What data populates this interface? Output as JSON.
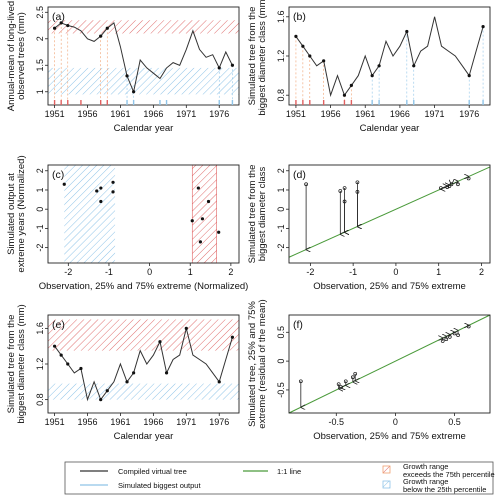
{
  "chart_data": [
    {
      "panel": "(a)",
      "type": "line",
      "xlabel": "Calendar year",
      "ylabel": "Annual-mean of long-lived observed trees (mm)",
      "xlim": [
        1950,
        1979
      ],
      "ylim": [
        0.75,
        2.6
      ],
      "xticks": [
        1951,
        1956,
        1961,
        1966,
        1971,
        1976
      ],
      "yticks": [
        1.0,
        1.5,
        2.0,
        2.5
      ],
      "band_upper": [
        2.1,
        2.35
      ],
      "band_lower": [
        0.95,
        1.45
      ],
      "series": [
        {
          "x": [
            1951,
            1952,
            1953,
            1954,
            1955,
            1956,
            1957,
            1958,
            1959,
            1960,
            1961,
            1962,
            1963,
            1964,
            1965,
            1966,
            1967,
            1968,
            1969,
            1970,
            1971,
            1972,
            1973,
            1974,
            1975,
            1976,
            1977,
            1978
          ],
          "values": [
            2.2,
            2.3,
            2.25,
            2.22,
            2.15,
            2.0,
            1.95,
            2.05,
            2.2,
            2.3,
            1.85,
            1.3,
            1.0,
            1.6,
            1.45,
            1.35,
            1.25,
            1.45,
            1.55,
            1.5,
            1.8,
            2.15,
            1.8,
            1.65,
            1.7,
            1.45,
            1.75,
            1.5
          ]
        }
      ],
      "markers_x": [
        1951,
        1952,
        1953,
        1958,
        1959,
        1962,
        1963,
        1976,
        1978
      ],
      "rug_red": [
        1951,
        1952,
        1953,
        1955,
        1958,
        1959
      ],
      "rug_blue": [
        1962,
        1963,
        1967,
        1968,
        1976,
        1978
      ]
    },
    {
      "panel": "(b)",
      "type": "line",
      "xlabel": "Calendar year",
      "ylabel": "Simulated tree from the biggest diameter class (mm)",
      "xlim": [
        1950,
        1979
      ],
      "ylim": [
        0.7,
        1.7
      ],
      "xticks": [
        1951,
        1956,
        1961,
        1966,
        1971,
        1976
      ],
      "yticks": [
        0.8,
        1.2,
        1.6
      ],
      "series": [
        {
          "x": [
            1951,
            1952,
            1953,
            1954,
            1955,
            1956,
            1957,
            1958,
            1959,
            1960,
            1961,
            1962,
            1963,
            1964,
            1965,
            1966,
            1967,
            1968,
            1969,
            1970,
            1971,
            1972,
            1973,
            1974,
            1975,
            1976,
            1977,
            1978
          ],
          "values": [
            1.4,
            1.3,
            1.2,
            1.1,
            1.15,
            0.8,
            1.0,
            0.8,
            0.9,
            1.0,
            1.2,
            1.0,
            1.1,
            1.35,
            1.2,
            1.3,
            1.45,
            1.1,
            1.25,
            1.3,
            1.6,
            1.3,
            1.25,
            1.2,
            1.1,
            1.0,
            1.25,
            1.5
          ]
        }
      ],
      "markers_x": [
        1951,
        1952,
        1953,
        1955,
        1958,
        1959,
        1962,
        1963,
        1967,
        1968,
        1976,
        1978
      ],
      "rug_red": [
        1951,
        1952,
        1953,
        1955,
        1958,
        1959
      ],
      "rug_blue": [
        1962,
        1963,
        1967,
        1968,
        1976,
        1978
      ]
    },
    {
      "panel": "(c)",
      "type": "scatter",
      "xlabel": "Observation, 25% and 75% extreme (Normalized)",
      "ylabel": "Simulated output at extreme years (Normalized)",
      "xlim": [
        -2.5,
        2.2
      ],
      "ylim": [
        -2.8,
        2.3
      ],
      "xticks": [
        -2,
        -1,
        0,
        1,
        2
      ],
      "yticks": [
        -2,
        -1,
        0,
        1,
        2
      ],
      "band_lower_x": [
        -2.1,
        -0.85
      ],
      "band_upper_x": [
        1.05,
        1.65
      ],
      "points": [
        [
          -2.1,
          1.3
        ],
        [
          -1.3,
          0.95
        ],
        [
          -1.2,
          1.1
        ],
        [
          -1.2,
          0.4
        ],
        [
          -0.9,
          0.9
        ],
        [
          -0.9,
          1.4
        ],
        [
          1.05,
          -0.6
        ],
        [
          1.2,
          1.1
        ],
        [
          1.25,
          -1.7
        ],
        [
          1.3,
          -0.5
        ],
        [
          1.45,
          0.4
        ],
        [
          1.7,
          -1.2
        ]
      ]
    },
    {
      "panel": "(d)",
      "type": "scatter",
      "xlabel": "Observation, 25% and 75% extreme",
      "ylabel": "Simulated tree from the biggest diameter class",
      "xlim": [
        -2.5,
        2.2
      ],
      "ylim": [
        -2.8,
        2.3
      ],
      "xticks": [
        -2,
        -1,
        0,
        1,
        2
      ],
      "yticks": [
        -2,
        -1,
        0,
        1,
        2
      ],
      "arrows": [
        [
          -2.1,
          1.3,
          -2.1
        ],
        [
          -1.3,
          0.95,
          -1.3
        ],
        [
          -1.2,
          1.1,
          -1.2
        ],
        [
          -1.2,
          0.4,
          -1.2
        ],
        [
          -0.9,
          0.9,
          -0.9
        ],
        [
          -0.9,
          1.4,
          -0.9
        ],
        [
          1.05,
          1.1,
          1.05
        ],
        [
          1.2,
          1.15,
          1.2
        ],
        [
          1.25,
          1.2,
          1.25
        ],
        [
          1.3,
          1.3,
          1.3
        ],
        [
          1.45,
          1.3,
          1.45
        ],
        [
          1.7,
          1.6,
          1.7
        ]
      ]
    },
    {
      "panel": "(e)",
      "type": "line",
      "xlabel": "Calendar year",
      "ylabel": "Simulated tree from the biggest diameter class (mm)",
      "xlim": [
        1950,
        1979
      ],
      "ylim": [
        0.65,
        1.75
      ],
      "xticks": [
        1951,
        1956,
        1961,
        1966,
        1971,
        1976
      ],
      "yticks": [
        0.8,
        1.2,
        1.6
      ],
      "band_upper": [
        1.35,
        1.7
      ],
      "band_lower": [
        0.8,
        0.98
      ],
      "series": [
        {
          "x": [
            1951,
            1952,
            1953,
            1954,
            1955,
            1956,
            1957,
            1958,
            1959,
            1960,
            1961,
            1962,
            1963,
            1964,
            1965,
            1966,
            1967,
            1968,
            1969,
            1970,
            1971,
            1972,
            1973,
            1974,
            1975,
            1976,
            1977,
            1978
          ],
          "values": [
            1.4,
            1.3,
            1.2,
            1.1,
            1.15,
            0.8,
            1.0,
            0.8,
            0.9,
            1.0,
            1.2,
            1.0,
            1.1,
            1.35,
            1.2,
            1.3,
            1.45,
            1.1,
            1.25,
            1.3,
            1.6,
            1.3,
            1.25,
            1.2,
            1.1,
            1.0,
            1.25,
            1.5
          ]
        }
      ],
      "markers_x": [
        1951,
        1952,
        1953,
        1955,
        1958,
        1959,
        1962,
        1963,
        1967,
        1968,
        1971,
        1976,
        1978
      ]
    },
    {
      "panel": "(f)",
      "type": "scatter",
      "xlabel": "Observation, 25% and 75% extreme",
      "ylabel": "Simulated tree, 25% and 75% extreme (residual of the mean)",
      "xlim": [
        -0.9,
        0.8
      ],
      "ylim": [
        -0.9,
        0.8
      ],
      "xticks": [
        -0.5,
        0.0,
        0.5
      ],
      "yticks": [
        -0.5,
        0.0,
        0.5
      ],
      "arrows": [
        [
          -0.8,
          -0.35,
          -0.8
        ],
        [
          -0.48,
          -0.4,
          -0.48
        ],
        [
          -0.46,
          -0.45,
          -0.46
        ],
        [
          -0.42,
          -0.35,
          -0.42
        ],
        [
          -0.36,
          -0.28,
          -0.36
        ],
        [
          -0.34,
          -0.22,
          -0.34
        ],
        [
          0.4,
          0.35,
          0.4
        ],
        [
          0.43,
          0.38,
          0.43
        ],
        [
          0.46,
          0.42,
          0.46
        ],
        [
          0.5,
          0.48,
          0.5
        ],
        [
          0.53,
          0.45,
          0.53
        ],
        [
          0.62,
          0.6,
          0.62
        ]
      ]
    }
  ],
  "legend": {
    "line_compiled": "Compiled virtual tree",
    "line_biggest": "Simulated biggest output",
    "line_11": "1:1 line",
    "box_upper_1": "Growth range",
    "box_upper_2": "exceeds the 75th percentile",
    "box_lower_1": "Growth range",
    "box_lower_2": "below the 25th percentile",
    "colors": {
      "line": "#333333",
      "blue": "#8fc4e8",
      "green": "#4a9a3a",
      "red": "#e06060",
      "orange": "#f0a070"
    }
  }
}
